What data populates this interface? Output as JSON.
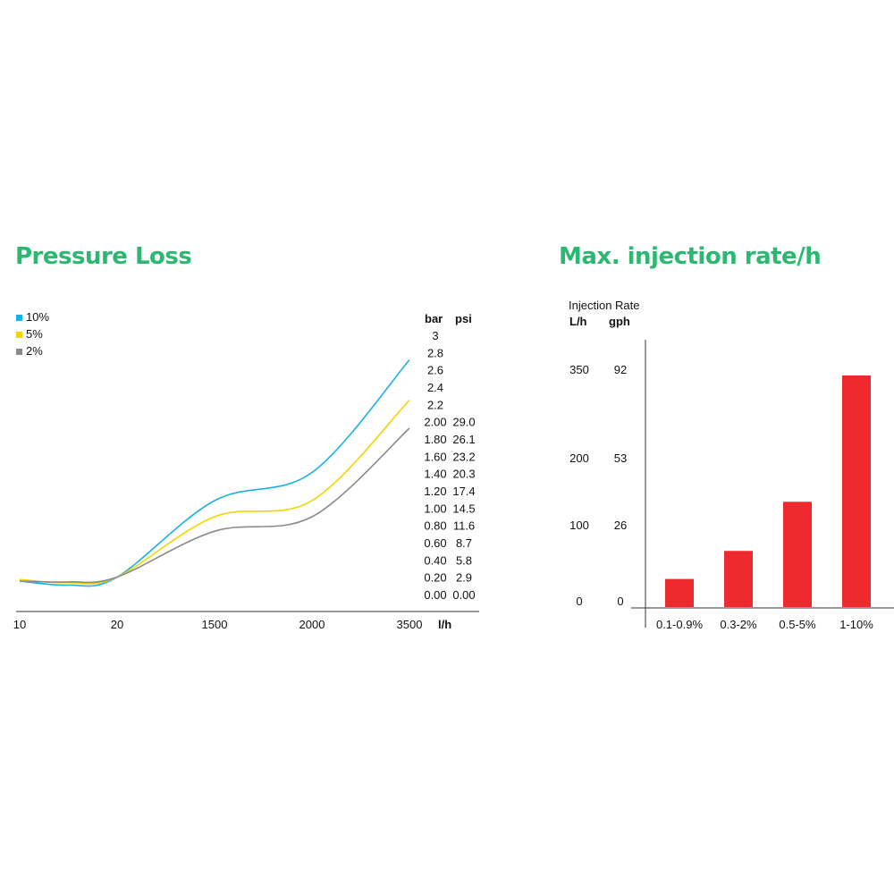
{
  "pressure_loss": {
    "title": "Pressure Loss",
    "col_headers": {
      "bar": "bar",
      "psi": "psi"
    },
    "x_unit": "l/h",
    "scale": {
      "bar": [
        "3",
        "2.8",
        "2.6",
        "2.4",
        "2.2",
        "2.00",
        "1.80",
        "1.60",
        "1.40",
        "1.20",
        "1.00",
        "0.80",
        "0.60",
        "0.40",
        "0.20",
        "0.00"
      ],
      "psi": [
        "",
        "",
        "",
        "",
        "",
        "29.0",
        "26.1",
        "23.2",
        "20.3",
        "17.4",
        "14.5",
        "11.6",
        "8.7",
        "5.8",
        "2.9",
        "0.00"
      ]
    },
    "colors": {
      "10%": "#1ab0e8",
      "5%": "#f2d400",
      "2%": "#8a8a8a",
      "accent": "#2db872"
    }
  },
  "injection_rate": {
    "title": "Max. injection rate/h",
    "axis_title": "Injection Rate",
    "col_headers": {
      "lh": "L/h",
      "gph": "gph"
    },
    "scale": {
      "lh": [
        "350",
        "200",
        "100",
        "0"
      ],
      "gph": [
        "92",
        "53",
        "26",
        "0"
      ]
    },
    "bar_color": "#ee2a2e"
  },
  "chart_data": [
    {
      "type": "line",
      "title": "Pressure Loss",
      "xlabel": "l/h",
      "ylabel": "bar / psi",
      "x_ticks": [
        "10",
        "20",
        "1500",
        "2000",
        "3500"
      ],
      "x_positions": [
        0,
        1,
        2,
        3,
        4
      ],
      "ylim": [
        0,
        3
      ],
      "legend": {
        "placement": "top-left",
        "entries": [
          "10%",
          "5%",
          "2%"
        ]
      },
      "series": [
        {
          "name": "10%",
          "color": "#1ab0e8",
          "x": [
            0,
            0.5,
            1,
            2,
            3,
            4
          ],
          "y": [
            0.0,
            -0.05,
            0.05,
            1.0,
            1.35,
            2.75
          ]
        },
        {
          "name": "5%",
          "color": "#f2d400",
          "x": [
            0,
            0.5,
            1,
            2,
            3,
            4
          ],
          "y": [
            0.02,
            -0.02,
            0.05,
            0.8,
            1.0,
            2.25
          ]
        },
        {
          "name": "2%",
          "color": "#8a8a8a",
          "x": [
            0,
            0.5,
            1,
            2,
            3,
            4
          ],
          "y": [
            0.0,
            -0.01,
            0.05,
            0.62,
            0.8,
            1.9
          ]
        }
      ]
    },
    {
      "type": "bar",
      "title": "Max. injection rate/h",
      "ylabel": "Injection Rate",
      "categories": [
        "0.1-0.9%",
        "0.3-2%",
        "0.5-5%",
        "1-10%"
      ],
      "values": [
        40,
        80,
        150,
        330
      ],
      "ylim": [
        0,
        350
      ]
    }
  ]
}
